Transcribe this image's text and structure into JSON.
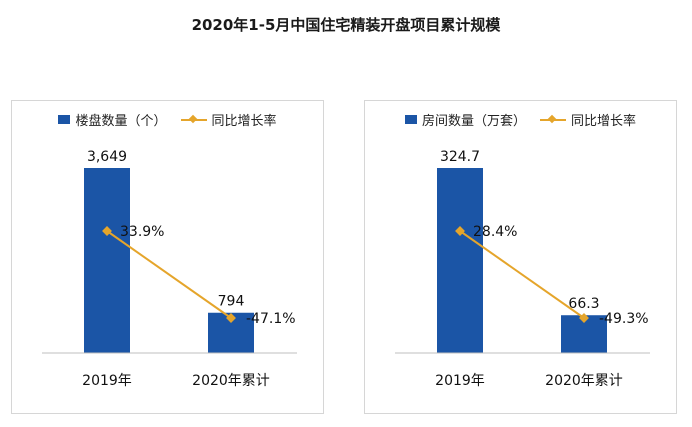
{
  "title": "2020年1-5月中国住宅精装开盘项目累计规模",
  "colors": {
    "bar": "#1b55a6",
    "line": "#e5a52b",
    "axis": "#bfbfbf"
  },
  "chart_data": [
    {
      "type": "bar",
      "categories": [
        "2019年",
        "2020年累计"
      ],
      "series": [
        {
          "name": "楼盘数量（个）",
          "type": "bar",
          "values": [
            3649,
            794
          ],
          "labels": [
            "3,649",
            "794"
          ]
        },
        {
          "name": "同比增长率",
          "type": "line",
          "values": [
            33.9,
            -47.1
          ],
          "labels": [
            "33.9%",
            "-47.1%"
          ]
        }
      ],
      "legend_position": "top",
      "grid": false
    },
    {
      "type": "bar",
      "categories": [
        "2019年",
        "2020年累计"
      ],
      "series": [
        {
          "name": "房间数量（万套）",
          "type": "bar",
          "values": [
            324.7,
            66.3
          ],
          "labels": [
            "324.7",
            "66.3"
          ]
        },
        {
          "name": "同比增长率",
          "type": "line",
          "values": [
            28.4,
            -49.3
          ],
          "labels": [
            "28.4%",
            "-49.3%"
          ]
        }
      ],
      "legend_position": "top",
      "grid": false
    }
  ]
}
